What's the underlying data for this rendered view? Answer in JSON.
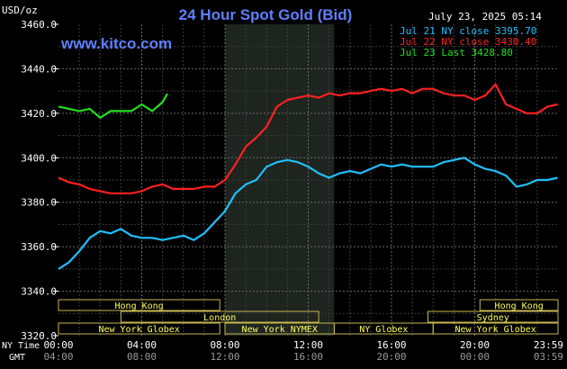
{
  "header": {
    "title": "24 Hour Spot Gold (Bid)",
    "unit": "USD/oz",
    "timestamp": "July 23, 2025 05:14",
    "site": "www.kitco.com"
  },
  "legend": [
    {
      "label": "Jul 21 NY close 3395.70",
      "color": "#20c0ff"
    },
    {
      "label": "Jul 22 NY close 3430.40",
      "color": "#ff2020"
    },
    {
      "label": "Jul 23 Last 3428.80",
      "color": "#20e020"
    }
  ],
  "axis_labels": {
    "ny_time": "NY Time",
    "gmt": "GMT"
  },
  "sessions": [
    {
      "label": "Hong Kong",
      "start": 0,
      "end": 7.75,
      "row": 0
    },
    {
      "label": "Hong Kong",
      "start": 20.25,
      "end": 24,
      "row": 0
    },
    {
      "label": "London",
      "start": 3,
      "end": 12.5,
      "row": 1
    },
    {
      "label": "Sydney",
      "start": 17.75,
      "end": 24,
      "row": 1
    },
    {
      "label": "New York Globex",
      "start": 0,
      "end": 7.75,
      "row": 2
    },
    {
      "label": "New York NYMEX",
      "start": 8,
      "end": 13.25,
      "row": 2
    },
    {
      "label": "NY Globex",
      "start": 13.25,
      "end": 18,
      "row": 2
    },
    {
      "label": "New York Globex",
      "start": 18,
      "end": 24,
      "row": 2
    }
  ],
  "chart_data": {
    "type": "line",
    "title": "24 Hour Spot Gold (Bid)",
    "ylabel": "USD/oz",
    "ylim": [
      3320,
      3460
    ],
    "yticks": [
      3320,
      3340,
      3360,
      3380,
      3400,
      3420,
      3440,
      3460
    ],
    "ytick_labels": [
      "3320.0",
      "3340.0",
      "3360.0",
      "3380.0",
      "3400.0",
      "3420.0",
      "3440.0",
      "3460.0"
    ],
    "xlim": [
      0,
      24
    ],
    "xticks": [
      0,
      4,
      8,
      12,
      16,
      20,
      23.98
    ],
    "xtick_labels_ny": [
      "00:00",
      "04:00",
      "08:00",
      "12:00",
      "16:00",
      "20:00",
      "23:59"
    ],
    "xtick_labels_gmt": [
      "04:00",
      "08:00",
      "12:00",
      "16:00",
      "20:00",
      "00:00",
      "03:59"
    ],
    "nymex_shade": [
      8,
      13.25
    ],
    "grid": true,
    "series": [
      {
        "name": "Jul 21 NY close 3395.70",
        "color": "#20c0ff",
        "x": [
          0,
          0.5,
          1,
          1.5,
          2,
          2.5,
          3,
          3.5,
          4,
          4.5,
          5,
          5.5,
          6,
          6.5,
          7,
          7.5,
          8,
          8.5,
          9,
          9.5,
          10,
          10.5,
          11,
          11.5,
          12,
          12.5,
          13,
          13.5,
          14,
          14.5,
          15,
          15.5,
          16,
          16.5,
          17,
          17.5,
          18,
          18.5,
          19,
          19.5,
          20,
          20.5,
          21,
          21.5,
          22,
          22.5,
          23,
          23.5,
          23.98
        ],
        "y": [
          3350,
          3353,
          3358,
          3364,
          3367,
          3366,
          3368,
          3365,
          3364,
          3364,
          3363,
          3364,
          3365,
          3363,
          3366,
          3371,
          3376,
          3384,
          3388,
          3390,
          3396,
          3398,
          3399,
          3398,
          3396,
          3393,
          3391,
          3393,
          3394,
          3393,
          3395,
          3397,
          3396,
          3397,
          3396,
          3396,
          3396,
          3398,
          3399,
          3400,
          3397,
          3395,
          3394,
          3392,
          3387,
          3388,
          3390,
          3390,
          3391
        ]
      },
      {
        "name": "Jul 22 NY close 3430.40",
        "color": "#ff2020",
        "x": [
          0,
          0.5,
          1,
          1.5,
          2,
          2.5,
          3,
          3.5,
          4,
          4.5,
          5,
          5.5,
          6,
          6.5,
          7,
          7.5,
          8,
          8.5,
          9,
          9.5,
          10,
          10.5,
          11,
          11.5,
          12,
          12.5,
          13,
          13.5,
          14,
          14.5,
          15,
          15.5,
          16,
          16.5,
          17,
          17.5,
          18,
          18.5,
          19,
          19.5,
          20,
          20.5,
          21,
          21.5,
          22,
          22.5,
          23,
          23.5,
          23.98
        ],
        "y": [
          3391,
          3389,
          3388,
          3386,
          3385,
          3384,
          3384,
          3384,
          3385,
          3387,
          3388,
          3386,
          3386,
          3386,
          3387,
          3387,
          3390,
          3397,
          3405,
          3409,
          3414,
          3423,
          3426,
          3427,
          3428,
          3427,
          3429,
          3428,
          3429,
          3429,
          3430,
          3431,
          3430,
          3431,
          3429,
          3431,
          3431,
          3429,
          3428,
          3428,
          3426,
          3428,
          3433,
          3424,
          3422,
          3420,
          3420,
          3423,
          3424
        ]
      },
      {
        "name": "Jul 23 Last 3428.80",
        "color": "#20e020",
        "x": [
          0,
          0.5,
          1,
          1.5,
          2,
          2.5,
          3,
          3.5,
          4,
          4.5,
          5,
          5.23
        ],
        "y": [
          3423,
          3422,
          3421,
          3422,
          3418,
          3421,
          3421,
          3421,
          3424,
          3421,
          3425,
          3428.8
        ]
      }
    ]
  }
}
